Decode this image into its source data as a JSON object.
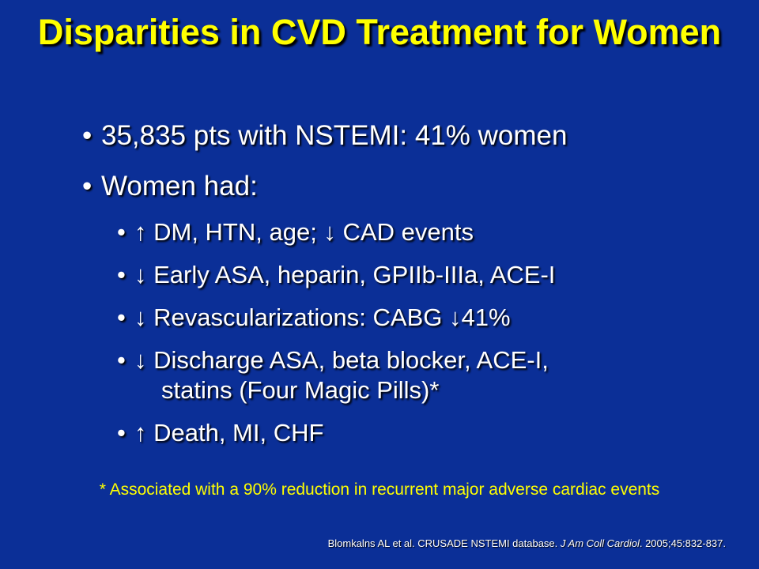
{
  "title": "Disparities in CVD Treatment for Women",
  "bullets": [
    {
      "text": "35,835 pts with NSTEMI: 41% women"
    },
    {
      "text": "Women had:"
    }
  ],
  "sub_bullets": [
    {
      "text": "↑ DM, HTN, age; ↓ CAD events"
    },
    {
      "text": "↓ Early ASA, heparin, GPIIb-IIIa, ACE-I"
    },
    {
      "text": "↓ Revascularizations: CABG ↓41%"
    },
    {
      "text": "↓ Discharge ASA, beta blocker, ACE-I,",
      "continuation": "statins (Four Magic Pills)*"
    },
    {
      "text": "↑ Death, MI, CHF"
    }
  ],
  "footnote": "* Associated with a 90% reduction in recurrent major adverse cardiac events",
  "citation": {
    "authors": "Blomkalns AL et al. CRUSADE NSTEMI database.",
    "journal": "J Am Coll Cardiol",
    "details": ". 2005;45:832-837."
  }
}
